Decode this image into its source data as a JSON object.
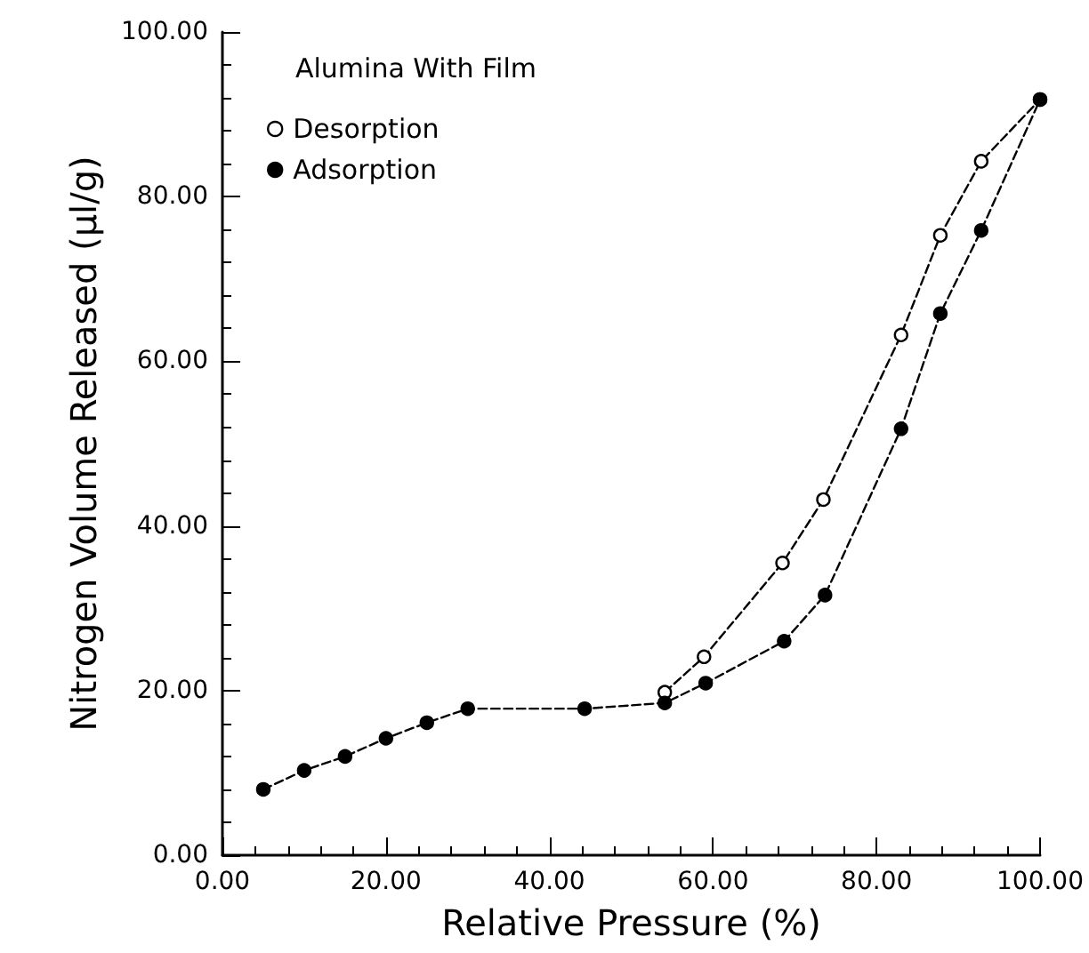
{
  "chart_data": {
    "type": "line",
    "xlabel": "Relative Pressure (%)",
    "ylabel": "Nitrogen Volume Released (μl/g)",
    "legend_title": "Alumina With Film",
    "legend": "top left",
    "marker": "circle",
    "line_style": "dashed",
    "grid": false,
    "xlim": [
      0,
      100
    ],
    "ylim": [
      0,
      100
    ],
    "xticks": [
      {
        "value": 0,
        "label": "0.00"
      },
      {
        "value": 20,
        "label": "20.00"
      },
      {
        "value": 40,
        "label": "40.00"
      },
      {
        "value": 60,
        "label": "60.00"
      },
      {
        "value": 80,
        "label": "80.00"
      },
      {
        "value": 100,
        "label": "100.00"
      }
    ],
    "yticks": [
      {
        "value": 0,
        "label": "0.00"
      },
      {
        "value": 20,
        "label": "20.00"
      },
      {
        "value": 40,
        "label": "40.00"
      },
      {
        "value": 60,
        "label": "60.00"
      },
      {
        "value": 80,
        "label": "80.00"
      },
      {
        "value": 100,
        "label": "100.00"
      }
    ],
    "series": [
      {
        "name": "Desorption",
        "color": "#000000",
        "x": [
          54.1,
          58.9,
          68.5,
          73.5,
          83,
          87.8,
          92.8,
          100
        ],
        "values": [
          19.8,
          24.1,
          35.5,
          43.2,
          63.2,
          75.3,
          84.3,
          91.8
        ]
      },
      {
        "name": "Adsorption",
        "color": "#000000",
        "x": [
          5,
          10,
          15,
          20,
          25,
          30,
          44.3,
          54.1,
          59.1,
          68.7,
          73.7,
          83,
          87.8,
          92.8,
          100
        ],
        "values": [
          8,
          10.3,
          12,
          14.2,
          16.1,
          17.8,
          17.8,
          18.5,
          20.9,
          26,
          31.6,
          51.8,
          65.8,
          75.9,
          91.8
        ]
      }
    ]
  }
}
